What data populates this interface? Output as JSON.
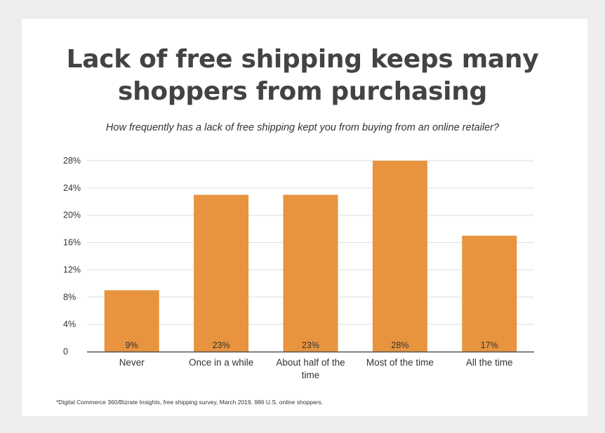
{
  "header": {
    "title_line1": "Lack of free shipping keeps many",
    "title_line2": "shoppers from purchasing",
    "subtitle": "How frequently has a lack of free shipping kept you from buying from an online retailer?"
  },
  "footnote": "*Digital Commerce 360/Bizrate Insights, free shipping survey, March 2019, 986 U.S. online shoppers.",
  "colors": {
    "bar": "#e8943f",
    "gridline": "#dddddd",
    "axis": "#555555",
    "text": "#333333"
  },
  "chart_data": {
    "type": "bar",
    "title": "Lack of free shipping keeps many shoppers from purchasing",
    "subtitle": "How frequently has a lack of free shipping kept you from buying from an online retailer?",
    "categories": [
      [
        "Never"
      ],
      [
        "Once in a while"
      ],
      [
        "About half of the",
        "time"
      ],
      [
        "Most of the time"
      ],
      [
        "All the time"
      ]
    ],
    "values": [
      9,
      23,
      23,
      28,
      17
    ],
    "data_labels": [
      "9%",
      "23%",
      "23%",
      "28%",
      "17%"
    ],
    "yticks": [
      0,
      4,
      8,
      12,
      16,
      20,
      24,
      28
    ],
    "ytick_labels": [
      "0",
      "4%",
      "8%",
      "12%",
      "16%",
      "20%",
      "24%",
      "28%"
    ],
    "ylim": [
      0,
      28
    ],
    "xlabel": "",
    "ylabel": "",
    "grid": true,
    "legend": "none"
  }
}
